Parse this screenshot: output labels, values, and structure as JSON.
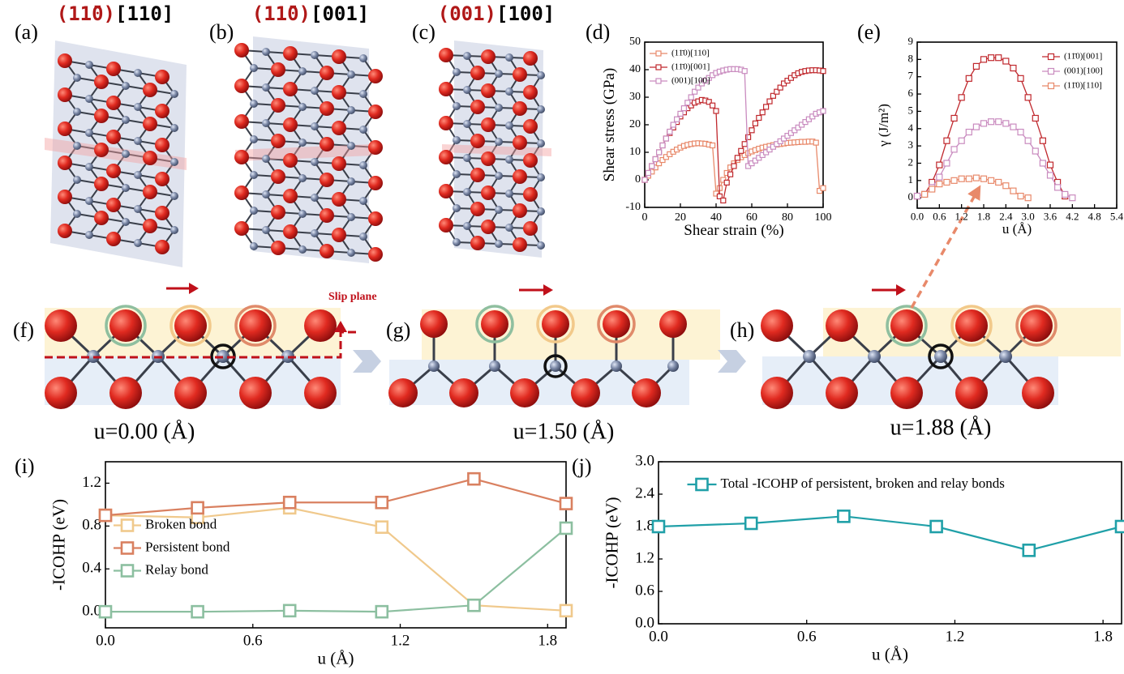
{
  "structures": [
    {
      "label": "(a)",
      "plane": "(11̄0)",
      "direction": "[110]"
    },
    {
      "label": "(b)",
      "plane": "(11̄0)",
      "direction": "[001]"
    },
    {
      "label": "(c)",
      "plane": "(001)",
      "direction": "[100]"
    }
  ],
  "snapshots": [
    {
      "label": "(f)",
      "caption": "u=0.00 (Å)"
    },
    {
      "label": "(g)",
      "caption": "u=1.50 (Å)"
    },
    {
      "label": "(h)",
      "caption": "u=1.88 (Å)"
    }
  ],
  "slip_plane_label": "Slip plane",
  "chart_data": [
    {
      "type": "line",
      "panel_label": "(d)",
      "x_label": "Shear strain (%)",
      "y_label": "Shear stress (GPa)",
      "xlim": [
        0,
        100
      ],
      "xticks": [
        0,
        20,
        40,
        60,
        80,
        100
      ],
      "ylim": [
        -10,
        50
      ],
      "yticks": [
        -10,
        0,
        10,
        20,
        30,
        40,
        50
      ],
      "legend": "upper left",
      "series": [
        {
          "name": "(11̄0)[110]",
          "color": "#e8896a",
          "x": [
            0,
            2,
            4,
            6,
            8,
            10,
            12,
            14,
            16,
            18,
            20,
            22,
            24,
            26,
            28,
            30,
            32,
            34,
            36,
            38,
            40,
            42,
            44,
            46,
            48,
            50,
            52,
            54,
            56,
            58,
            60,
            62,
            64,
            66,
            68,
            70,
            72,
            74,
            76,
            78,
            80,
            82,
            84,
            86,
            88,
            90,
            92,
            94,
            96,
            98,
            100
          ],
          "values": [
            0,
            1.5,
            3,
            4.5,
            6,
            7.2,
            8.3,
            9.3,
            10.2,
            11,
            11.7,
            12.3,
            12.7,
            13,
            13.2,
            13.3,
            13.2,
            13.1,
            12.8,
            12.5,
            -5,
            -3,
            0,
            2.5,
            4.5,
            6,
            7.2,
            8.2,
            9,
            9.7,
            10.3,
            10.8,
            11.3,
            11.7,
            12,
            12.3,
            12.6,
            12.8,
            13,
            13.2,
            13.4,
            13.5,
            13.6,
            13.7,
            13.8,
            13.8,
            13.9,
            13.9,
            13.5,
            -4,
            -3
          ]
        },
        {
          "name": "(11̄0)[001]",
          "color": "#c0282d",
          "x": [
            0,
            2,
            4,
            6,
            8,
            10,
            12,
            14,
            16,
            18,
            20,
            22,
            24,
            26,
            28,
            30,
            32,
            34,
            36,
            38,
            40,
            42,
            44,
            46,
            48,
            50,
            52,
            54,
            56,
            58,
            60,
            62,
            64,
            66,
            68,
            70,
            72,
            74,
            76,
            78,
            80,
            82,
            84,
            86,
            88,
            90,
            92,
            94,
            96,
            98,
            100
          ],
          "values": [
            0,
            2.5,
            5,
            7.5,
            10,
            12.5,
            15,
            17,
            19,
            21,
            23,
            24.5,
            26,
            27,
            28,
            28.5,
            29,
            28.8,
            28.3,
            27,
            25,
            -6,
            -7.5,
            -1,
            2,
            5,
            8,
            10.5,
            13,
            15.5,
            18,
            20.5,
            22.5,
            24.5,
            26.5,
            28.5,
            30.5,
            32,
            33.5,
            35,
            36,
            37,
            38,
            38.7,
            39.2,
            39.5,
            39.7,
            39.8,
            39.8,
            39.7,
            39.5
          ]
        },
        {
          "name": "(001)[100]",
          "color": "#c98bbf",
          "x": [
            0,
            2,
            4,
            6,
            8,
            10,
            12,
            14,
            16,
            18,
            20,
            22,
            24,
            26,
            28,
            30,
            32,
            34,
            36,
            38,
            40,
            42,
            44,
            46,
            48,
            50,
            52,
            54,
            56,
            58,
            60,
            62,
            64,
            66,
            68,
            70,
            72,
            74,
            76,
            78,
            80,
            82,
            84,
            86,
            88,
            90,
            92,
            94,
            96,
            98,
            100
          ],
          "values": [
            0,
            2.5,
            5,
            7.5,
            10,
            12.5,
            15,
            17.5,
            20,
            22,
            24,
            26,
            28,
            30,
            32,
            33.5,
            35,
            36,
            37,
            38,
            38.8,
            39.3,
            39.7,
            40,
            40.2,
            40.2,
            40.2,
            40,
            39.5,
            5,
            6,
            7,
            8,
            9,
            10,
            11,
            12,
            13,
            14,
            15,
            16,
            17,
            18,
            19,
            20,
            21,
            22,
            23,
            24,
            24.5,
            25
          ]
        }
      ]
    },
    {
      "type": "line",
      "panel_label": "(e)",
      "x_label": "u (Å)",
      "y_label": "γ (J/m²)",
      "xlim": [
        0,
        5.4
      ],
      "xticks": [
        {
          "value": 0,
          "label": "0.0"
        },
        0.6,
        1.2,
        1.8,
        2.4,
        {
          "value": 3,
          "label": "3.0"
        },
        3.6,
        4.2,
        4.8,
        5.4
      ],
      "ylim": [
        -0.6,
        9
      ],
      "yticks": [
        0,
        1,
        2,
        3,
        4,
        5,
        6,
        7,
        8,
        9
      ],
      "legend": "upper right",
      "series": [
        {
          "name": "(11̄0)[001]",
          "color": "#c0282d",
          "x": [
            0,
            0.2,
            0.4,
            0.6,
            0.8,
            1,
            1.2,
            1.4,
            1.6,
            1.8,
            2,
            2.2,
            2.4,
            2.6,
            2.8,
            3,
            3.2,
            3.4,
            3.6,
            3.8,
            4
          ],
          "values": [
            0.1,
            0.2,
            0.9,
            1.9,
            3.3,
            4.6,
            5.8,
            6.9,
            7.6,
            8,
            8.1,
            8.1,
            7.9,
            7.5,
            6.9,
            5.8,
            4.6,
            3.3,
            1.9,
            0.9,
            0.1
          ]
        },
        {
          "name": "(001)[100]",
          "color": "#c98bbf",
          "x": [
            0,
            0.2,
            0.4,
            0.6,
            0.8,
            1,
            1.2,
            1.4,
            1.6,
            1.8,
            2,
            2.2,
            2.4,
            2.6,
            2.8,
            3,
            3.2,
            3.4,
            3.6,
            3.8,
            4,
            4.2
          ],
          "values": [
            0.1,
            0.2,
            0.6,
            1.2,
            2,
            2.8,
            3.3,
            3.8,
            4.1,
            4.3,
            4.4,
            4.4,
            4.3,
            4.1,
            3.8,
            3.3,
            2.7,
            2,
            1.3,
            0.6,
            0.2,
            0
          ]
        },
        {
          "name": "(11̄0)[110]",
          "color": "#e8896a",
          "x": [
            0.2,
            0.4,
            0.6,
            0.8,
            1,
            1.2,
            1.4,
            1.6,
            1.8,
            2,
            2.2,
            2.4,
            2.6,
            2.8,
            3
          ],
          "values": [
            0.2,
            0.5,
            0.8,
            0.9,
            1,
            1.1,
            1.1,
            1.15,
            1.1,
            1,
            0.9,
            0.7,
            0.4,
            0.1,
            0
          ]
        }
      ]
    },
    {
      "type": "line",
      "panel_label": "(i)",
      "x_label": "u (Å)",
      "y_label": "-ICOHP (eV)",
      "x": [
        0,
        0.375,
        0.75,
        1.125,
        1.5,
        1.875
      ],
      "xlim": [
        0,
        1.875
      ],
      "xticks": [
        {
          "value": 0,
          "label": "0.0"
        },
        0.6,
        1.2,
        1.8
      ],
      "ylim": [
        -0.15,
        1.4
      ],
      "yticks": [
        {
          "value": 0,
          "label": "0.0"
        },
        0.4,
        0.8,
        1.2
      ],
      "legend": "center left",
      "series": [
        {
          "name": "Broken bond",
          "color": "#f0c98c",
          "values": [
            0.9,
            0.88,
            0.97,
            0.79,
            0.06,
            0.01
          ]
        },
        {
          "name": "Persistent bond",
          "color": "#d98060",
          "values": [
            0.9,
            0.97,
            1.02,
            1.02,
            1.24,
            1.01
          ]
        },
        {
          "name": "Relay bond",
          "color": "#8cbfa0",
          "values": [
            0,
            0,
            0.01,
            0,
            0.06,
            0.78
          ]
        }
      ]
    },
    {
      "type": "line",
      "panel_label": "(j)",
      "x_label": "u (Å)",
      "y_label": "-ICOHP (eV)",
      "x": [
        0,
        0.375,
        0.75,
        1.125,
        1.5,
        1.875
      ],
      "xlim": [
        0,
        1.875
      ],
      "xticks": [
        {
          "value": 0,
          "label": "0.0"
        },
        0.6,
        1.2,
        1.8
      ],
      "ylim": [
        0,
        3
      ],
      "yticks": [
        {
          "value": 0,
          "label": "0.0"
        },
        0.6,
        1.2,
        1.8,
        2.4,
        {
          "value": 3,
          "label": "3.0"
        }
      ],
      "legend": "upper center",
      "series": [
        {
          "name": "Total -ICOHP of persistent, broken and relay bonds",
          "color": "#20a0a8",
          "values": [
            1.8,
            1.86,
            1.99,
            1.8,
            1.36,
            1.8
          ]
        }
      ]
    }
  ]
}
